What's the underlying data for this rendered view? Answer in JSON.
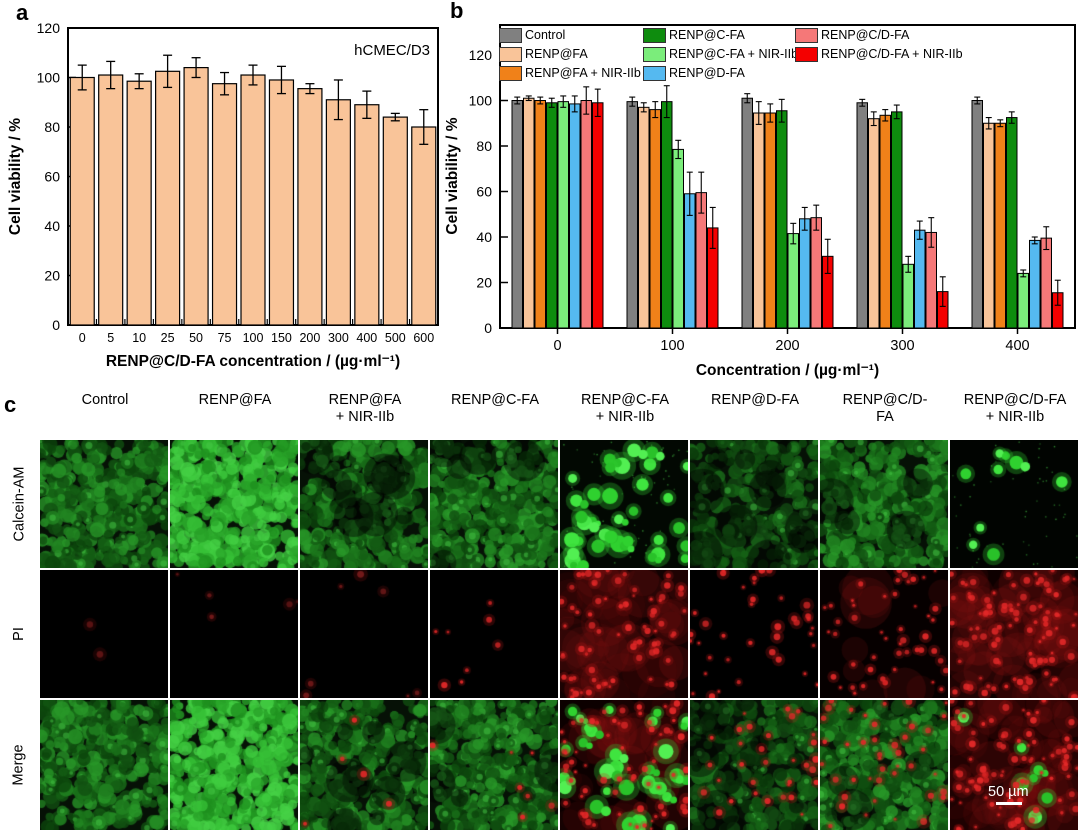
{
  "panels": {
    "a": "a",
    "b": "b",
    "c": "c"
  },
  "chart_data": [
    {
      "id": "panel_a",
      "type": "bar",
      "title": "hCMEC/D3",
      "xlabel": "RENP@C/D-FA concentration / (µg·ml⁻¹)",
      "ylabel": "Cell viability / %",
      "ylim": [
        0,
        120
      ],
      "yticks": [
        0,
        20,
        40,
        60,
        80,
        100,
        120
      ],
      "grid": false,
      "bar_color": "#F9C499",
      "bar_edge": "#000000",
      "categories": [
        "0",
        "5",
        "10",
        "25",
        "50",
        "75",
        "100",
        "150",
        "200",
        "300",
        "400",
        "500",
        "600"
      ],
      "values": [
        100,
        101,
        98.5,
        102.5,
        104,
        97.5,
        101,
        99,
        95.5,
        91,
        89,
        84,
        80
      ],
      "errors": [
        5,
        5.5,
        3,
        6.5,
        4,
        4.5,
        4,
        5.5,
        2,
        8,
        5.5,
        1.5,
        7
      ]
    },
    {
      "id": "panel_b",
      "type": "bar",
      "xlabel": "Concentration / (µg·ml⁻¹)",
      "ylabel": "Cell viability / %",
      "ylim": [
        0,
        120
      ],
      "yticks": [
        0,
        20,
        40,
        60,
        80,
        100,
        120
      ],
      "grid": false,
      "legend_position": "top-inside",
      "categories": [
        "0",
        "100",
        "200",
        "300",
        "400"
      ],
      "series": [
        {
          "name": "Control",
          "color": "#808080",
          "values": [
            100,
            99.5,
            101,
            99,
            100
          ],
          "errors": [
            1.5,
            2,
            2,
            1.5,
            1.5
          ]
        },
        {
          "name": "RENP@FA",
          "color": "#F9C499",
          "values": [
            101,
            97,
            94.5,
            92,
            90
          ],
          "errors": [
            1,
            2,
            5,
            3,
            2.5
          ]
        },
        {
          "name": "RENP@FA + NIR-IIb",
          "color": "#F08119",
          "values": [
            100,
            96,
            94.5,
            93.5,
            90
          ],
          "errors": [
            1.5,
            3.5,
            4,
            2.5,
            1.5
          ]
        },
        {
          "name": "RENP@C-FA",
          "color": "#0E8C0E",
          "values": [
            99,
            99.5,
            95.5,
            95,
            92.5
          ],
          "errors": [
            2,
            7,
            5,
            3,
            2.5
          ]
        },
        {
          "name": "RENP@C-FA + NIR-IIb",
          "color": "#7BED7B",
          "values": [
            99.5,
            78.5,
            41.5,
            28,
            24
          ],
          "errors": [
            2.5,
            4,
            4.5,
            3.5,
            1.5
          ]
        },
        {
          "name": "RENP@D-FA",
          "color": "#55B9F0",
          "values": [
            98.5,
            59,
            48,
            43,
            38.5
          ],
          "errors": [
            3.5,
            9.5,
            5,
            4,
            1.5
          ]
        },
        {
          "name": "RENP@C/D-FA",
          "color": "#F57878",
          "values": [
            100,
            59.5,
            48.5,
            42,
            39.5
          ],
          "errors": [
            6,
            9,
            5.5,
            6.5,
            5
          ]
        },
        {
          "name": "RENP@C/D-FA + NIR-IIb",
          "color": "#F40000",
          "values": [
            99,
            44,
            31.5,
            16,
            15.5
          ],
          "errors": [
            6,
            9,
            7.5,
            6.5,
            5.5
          ]
        }
      ]
    }
  ],
  "panel_c": {
    "columns": [
      "Control",
      "RENP@FA",
      "RENP@FA\n+ NIR-IIb",
      "RENP@C-FA",
      "RENP@C-FA\n+ NIR-IIb",
      "RENP@D-FA",
      "RENP@C/D-\nFA",
      "RENP@C/D-FA\n+ NIR-IIb"
    ],
    "rows": [
      "Calcein-AM",
      "PI",
      "Merge"
    ],
    "scale_bar": "50 µm"
  }
}
